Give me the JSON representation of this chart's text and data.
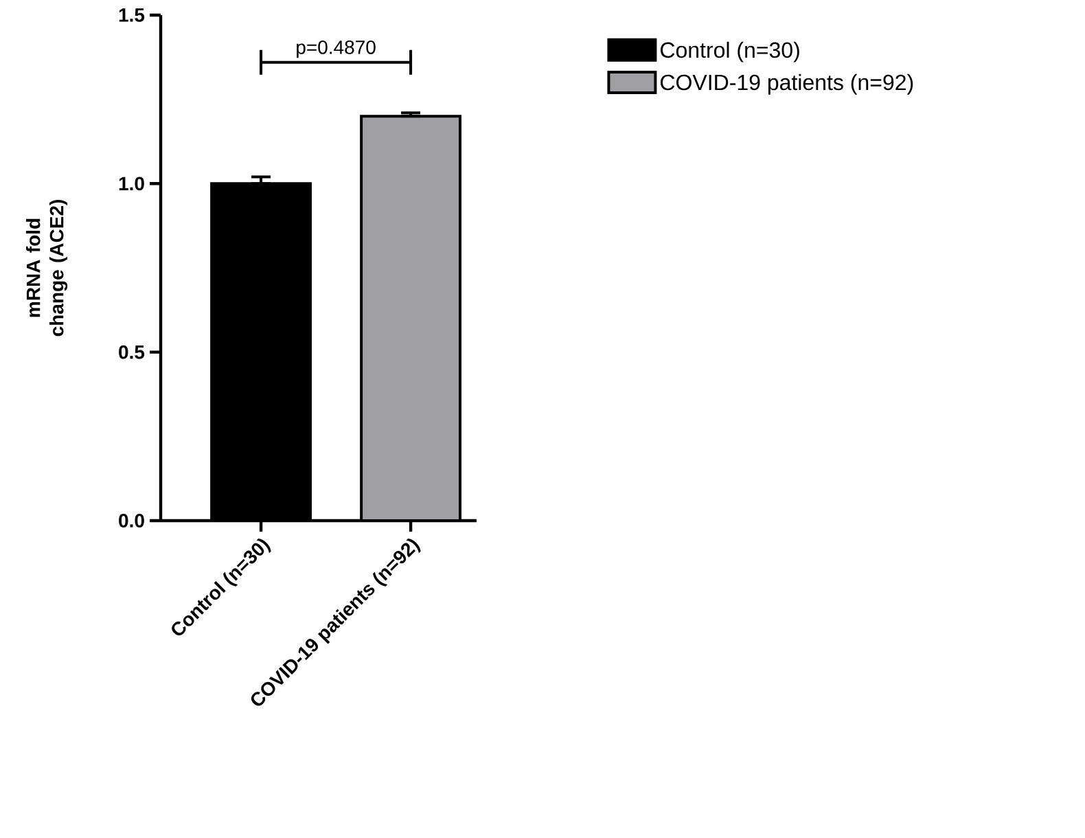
{
  "chart_data": {
    "type": "bar",
    "ylabel": "mRNA fold change (ACE2)",
    "categories": [
      "Control (n=30)",
      "COVID-19 patients (n=92)"
    ],
    "series": [
      {
        "name": "Control (n=30)",
        "color": "#000000",
        "values": [
          1.0,
          null
        ],
        "errors": [
          [
            1.0,
            1.02
          ],
          null
        ]
      },
      {
        "name": "COVID-19 patients (n=92)",
        "color": "#a0a0a4",
        "values": [
          null,
          1.2
        ],
        "errors": [
          null,
          [
            1.2,
            1.21
          ]
        ]
      }
    ],
    "ylim": [
      0,
      1.5
    ],
    "yticks": [
      {
        "value": 0,
        "label": "0.0"
      },
      0.5,
      {
        "value": 1,
        "label": "1.0"
      },
      1.5
    ],
    "annotations": [
      "p=0.4870"
    ],
    "legend": "top right",
    "grid": false
  }
}
